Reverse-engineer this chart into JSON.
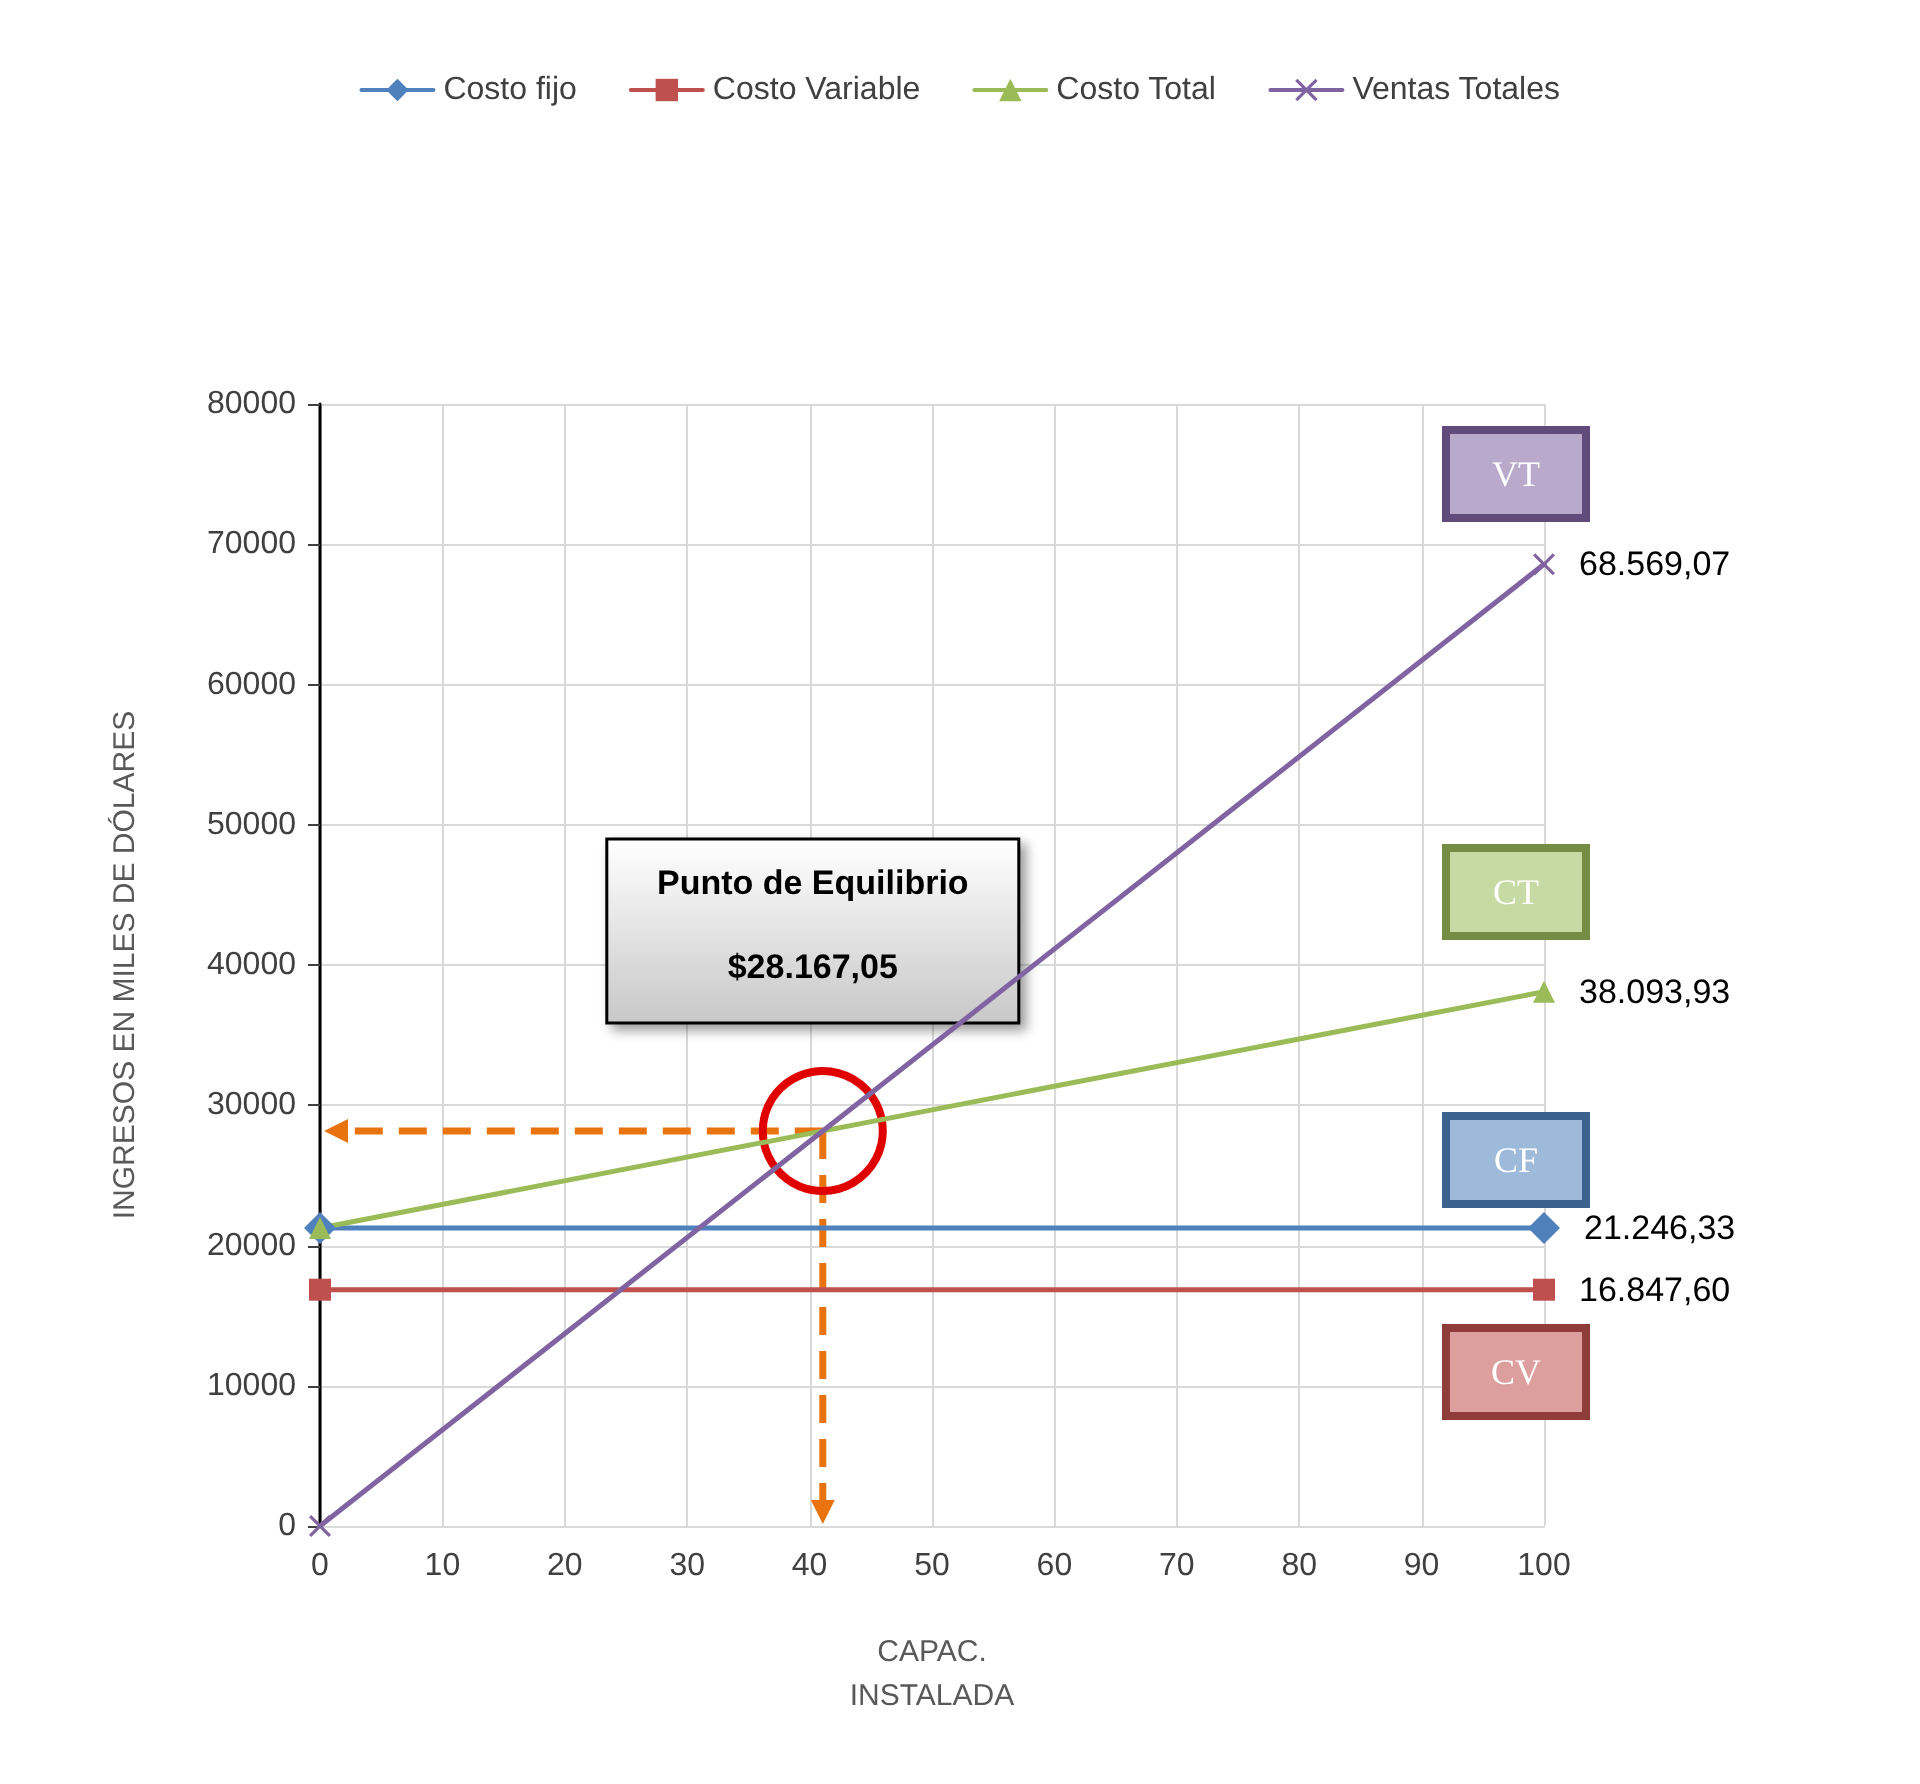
{
  "chart_data": {
    "type": "line",
    "xlabel": "CAPAC.\nINSTALADA",
    "ylabel": "INGRESOS EN MILES DE DÓLARES",
    "x": [
      0,
      100
    ],
    "series": [
      {
        "name": "Costo fijo",
        "color": "#4f81bd",
        "marker": "diamond",
        "values": [
          21246.33,
          21246.33
        ],
        "value_labels": [
          null,
          "21.246,33"
        ]
      },
      {
        "name": "Costo Variable",
        "color": "#c0504d",
        "marker": "square",
        "values": [
          16847.6,
          16847.6
        ],
        "value_labels": [
          null,
          "16.847,60"
        ]
      },
      {
        "name": "Costo Total",
        "color": "#9bbb59",
        "marker": "triangle",
        "values": [
          21246.33,
          38093.93
        ],
        "value_labels": [
          null,
          "38.093,93"
        ]
      },
      {
        "name": "Ventas Totales",
        "color": "#8064a2",
        "marker": "cross",
        "values": [
          0,
          68569.07
        ],
        "value_labels": [
          null,
          "68.569,07"
        ]
      }
    ],
    "xlim": [
      0,
      100
    ],
    "xticks": [
      0,
      10,
      20,
      30,
      40,
      50,
      60,
      70,
      80,
      90,
      100
    ],
    "ylim": [
      0,
      80000
    ],
    "yticks": [
      0,
      10000,
      20000,
      30000,
      40000,
      50000,
      60000,
      70000,
      80000
    ],
    "grid": true,
    "legend": "top",
    "annotations": [
      "CF",
      "CV",
      "CT",
      "VT",
      "Punto de Equilibrio",
      "$28.167,05"
    ]
  }
}
